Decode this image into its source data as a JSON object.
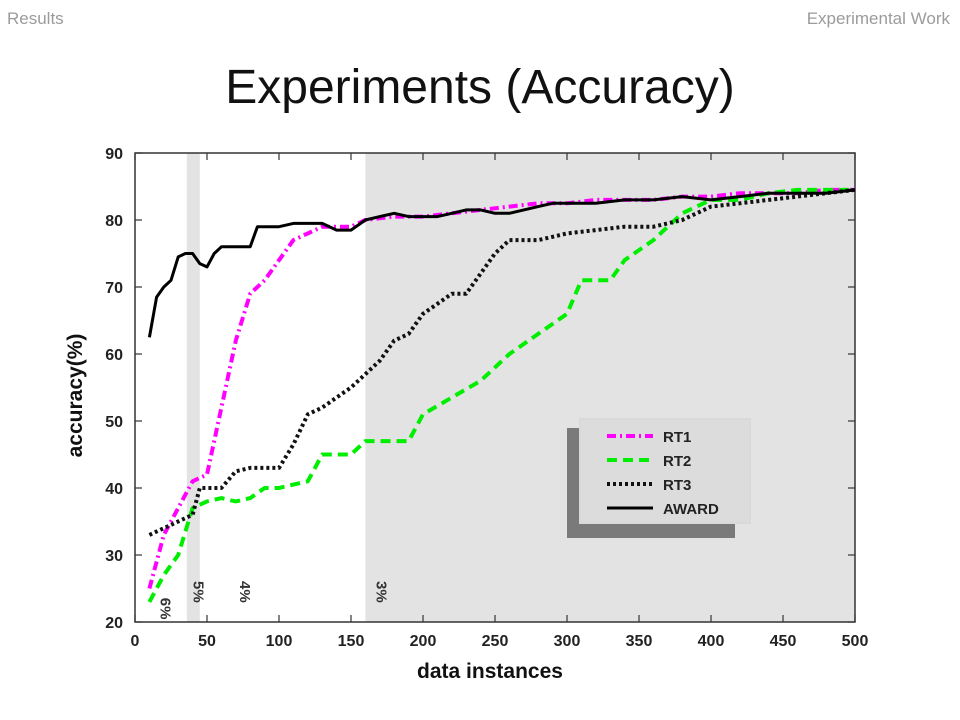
{
  "header": {
    "left": "Results",
    "right": "Experimental Work"
  },
  "slide": {
    "title": "Experiments (Accuracy)"
  },
  "chart_data": {
    "type": "line",
    "title": "",
    "xlabel": "data instances",
    "ylabel": "accuracy(%)",
    "xlim": [
      0,
      500
    ],
    "ylim": [
      20,
      90
    ],
    "xticks": [
      0,
      50,
      100,
      150,
      200,
      250,
      300,
      350,
      400,
      450,
      500
    ],
    "yticks": [
      20,
      30,
      40,
      50,
      60,
      70,
      80,
      90
    ],
    "grid": false,
    "legend_position": "lower-right",
    "shaded_regions": [
      {
        "x": [
          36,
          45
        ],
        "label": "5%"
      },
      {
        "x": [
          160,
          500
        ],
        "label": "3%"
      }
    ],
    "annotations": [
      {
        "text": "6%",
        "x": 15,
        "y": 22
      },
      {
        "text": "5%",
        "x": 38,
        "y": 24.5
      },
      {
        "text": "4%",
        "x": 70,
        "y": 24.5
      },
      {
        "text": "3%",
        "x": 165,
        "y": 24.5
      }
    ],
    "series": [
      {
        "name": "RT1",
        "color": "#ff00ff",
        "style": "dash-dot",
        "x": [
          10,
          20,
          30,
          40,
          50,
          60,
          70,
          80,
          90,
          100,
          110,
          120,
          130,
          140,
          150,
          160,
          180,
          200,
          220,
          240,
          260,
          280,
          300,
          320,
          340,
          360,
          380,
          400,
          420,
          440,
          460,
          480,
          500
        ],
        "y": [
          25,
          33,
          37,
          41,
          42,
          52,
          62,
          69,
          71,
          74,
          77,
          78,
          79,
          79,
          79,
          80,
          80.5,
          80.5,
          81,
          81.5,
          82,
          82.5,
          82.5,
          83,
          83,
          83,
          83.5,
          83.5,
          84,
          84,
          84,
          84.5,
          84.5
        ]
      },
      {
        "name": "RT2",
        "color": "#00ee00",
        "style": "dashed",
        "x": [
          10,
          20,
          30,
          40,
          50,
          60,
          70,
          80,
          90,
          100,
          110,
          120,
          130,
          140,
          150,
          160,
          170,
          180,
          190,
          200,
          220,
          240,
          260,
          280,
          300,
          310,
          320,
          330,
          340,
          360,
          380,
          400,
          420,
          440,
          460,
          480,
          500
        ],
        "y": [
          23,
          27,
          30,
          37,
          38,
          38.5,
          38,
          38.5,
          40,
          40,
          40.5,
          41,
          45,
          45,
          45,
          47,
          47,
          47,
          47,
          51,
          53.5,
          56,
          60,
          63,
          66,
          71,
          71,
          71,
          74,
          77,
          81,
          83,
          83,
          84,
          84.5,
          84.5,
          84.5
        ]
      },
      {
        "name": "RT3",
        "color": "#111111",
        "style": "dotted",
        "x": [
          10,
          20,
          30,
          40,
          45,
          50,
          60,
          70,
          80,
          90,
          100,
          110,
          120,
          130,
          140,
          150,
          160,
          170,
          180,
          190,
          200,
          210,
          220,
          230,
          240,
          250,
          260,
          270,
          280,
          290,
          300,
          320,
          340,
          360,
          380,
          400,
          420,
          440,
          460,
          480,
          500
        ],
        "y": [
          33,
          34,
          35,
          36,
          40,
          40,
          40,
          42.5,
          43,
          43,
          43,
          46.5,
          51,
          52,
          53.5,
          55,
          57,
          59,
          62,
          63,
          66,
          67.5,
          69,
          69,
          72,
          75,
          77,
          77,
          77,
          77.5,
          78,
          78.5,
          79,
          79,
          80,
          82,
          82.5,
          83,
          83.5,
          84,
          84.5
        ]
      },
      {
        "name": "AWARD",
        "color": "#000000",
        "style": "solid",
        "x": [
          10,
          15,
          20,
          25,
          30,
          35,
          40,
          45,
          50,
          55,
          60,
          65,
          70,
          75,
          80,
          85,
          90,
          95,
          100,
          110,
          120,
          130,
          140,
          150,
          160,
          170,
          180,
          190,
          200,
          210,
          220,
          230,
          240,
          250,
          260,
          270,
          280,
          290,
          300,
          320,
          340,
          360,
          380,
          400,
          420,
          440,
          460,
          480,
          500
        ],
        "y": [
          62.5,
          68.5,
          70,
          71,
          74.5,
          75,
          75,
          73.5,
          73,
          75,
          76,
          76,
          76,
          76,
          76,
          79,
          79,
          79,
          79,
          79.5,
          79.5,
          79.5,
          78.5,
          78.5,
          80,
          80.5,
          81,
          80.5,
          80.5,
          80.5,
          81,
          81.5,
          81.5,
          81,
          81,
          81.5,
          82,
          82.5,
          82.5,
          82.5,
          83,
          83,
          83.5,
          83,
          83.5,
          84,
          84,
          84,
          84.5
        ]
      }
    ]
  }
}
